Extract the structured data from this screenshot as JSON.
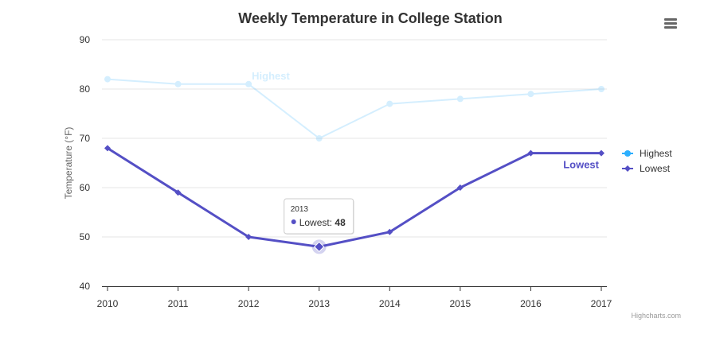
{
  "chart_data": {
    "type": "line",
    "title": "Weekly Temperature in College Station",
    "ylabel": "Temperature (°F)",
    "xlabel": "",
    "ylim": [
      40,
      90
    ],
    "yticks": [
      40,
      50,
      60,
      70,
      80,
      90
    ],
    "categories": [
      "2010",
      "2011",
      "2012",
      "2013",
      "2014",
      "2015",
      "2016",
      "2017"
    ],
    "grid": true,
    "legend_position": "right",
    "series": [
      {
        "name": "Highest",
        "values": [
          82,
          81,
          81,
          70,
          77,
          78,
          79,
          80
        ],
        "color": "#2caffe",
        "marker": "circle",
        "inactive": true,
        "label": "Highest"
      },
      {
        "name": "Lowest",
        "values": [
          68,
          59,
          50,
          48,
          51,
          60,
          67,
          67
        ],
        "color": "#544fc5",
        "marker": "diamond",
        "inactive": false,
        "label": "Lowest"
      }
    ],
    "tooltip": {
      "header": "2013",
      "series": "Lowest",
      "value": "48",
      "point_index": 3
    }
  },
  "credits": "Highcharts.com",
  "menu_icon": "hamburger-menu-icon"
}
